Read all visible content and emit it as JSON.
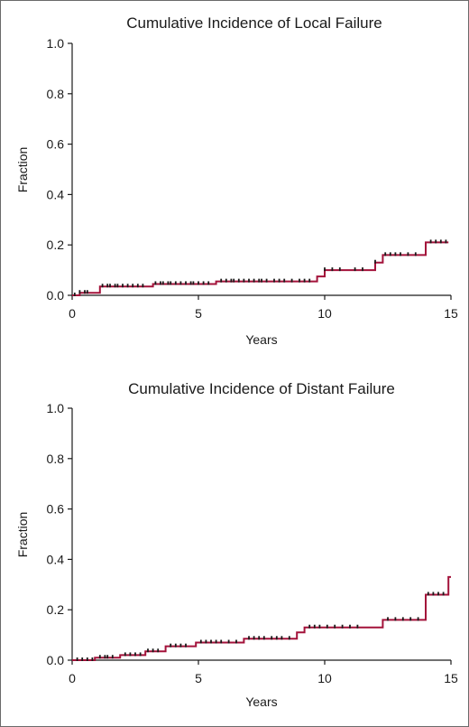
{
  "chart_data": [
    {
      "type": "line",
      "step": true,
      "title": "Cumulative Incidence of Local Failure",
      "xlabel": "Years",
      "ylabel": "Fraction",
      "xlim": [
        0,
        15
      ],
      "ylim": [
        0,
        1.0
      ],
      "xticks": [
        "0",
        "5",
        "10",
        "15"
      ],
      "yticks": [
        "0.0",
        "0.2",
        "0.4",
        "0.6",
        "0.8",
        "1.0"
      ],
      "grid": false,
      "line_color": "#a3123a",
      "censor_color": "#1a1a1a",
      "series": [
        {
          "x": [
            0,
            0.3,
            1.1,
            3.2,
            5.7,
            9.7,
            10.0,
            12.0,
            12.3,
            14.0,
            14.9
          ],
          "y": [
            0,
            0.01,
            0.035,
            0.045,
            0.055,
            0.075,
            0.1,
            0.13,
            0.16,
            0.21,
            0.21
          ],
          "censor_x": [
            0.1,
            0.3,
            0.5,
            0.6,
            1.2,
            1.4,
            1.5,
            1.7,
            1.8,
            2.0,
            2.2,
            2.4,
            2.6,
            2.8,
            3.3,
            3.5,
            3.6,
            3.8,
            3.9,
            4.1,
            4.3,
            4.5,
            4.7,
            4.8,
            5.0,
            5.2,
            5.4,
            5.9,
            6.1,
            6.3,
            6.4,
            6.6,
            6.8,
            7.0,
            7.2,
            7.4,
            7.5,
            7.7,
            8.0,
            8.2,
            8.4,
            8.7,
            9.0,
            9.2,
            9.4,
            10.0,
            10.3,
            10.6,
            11.2,
            11.5,
            12.0,
            12.4,
            12.6,
            12.8,
            13.0,
            13.3,
            13.6,
            14.2,
            14.4,
            14.6,
            14.8
          ]
        }
      ]
    },
    {
      "type": "line",
      "step": true,
      "title": "Cumulative Incidence of Distant Failure",
      "xlabel": "Years",
      "ylabel": "Fraction",
      "xlim": [
        0,
        15
      ],
      "ylim": [
        0,
        1.0
      ],
      "xticks": [
        "0",
        "5",
        "10",
        "15"
      ],
      "yticks": [
        "0.0",
        "0.2",
        "0.4",
        "0.6",
        "0.8",
        "1.0"
      ],
      "grid": false,
      "line_color": "#a3123a",
      "censor_color": "#1a1a1a",
      "series": [
        {
          "x": [
            0,
            0.9,
            1.9,
            2.9,
            3.7,
            4.9,
            6.8,
            8.9,
            9.2,
            12.1,
            12.3,
            13.9,
            14.0,
            14.9,
            15.0
          ],
          "y": [
            0,
            0.01,
            0.02,
            0.035,
            0.055,
            0.07,
            0.085,
            0.11,
            0.13,
            0.13,
            0.16,
            0.16,
            0.26,
            0.33,
            0.33
          ],
          "censor_x": [
            0.2,
            0.4,
            0.6,
            0.8,
            1.1,
            1.3,
            1.4,
            1.6,
            2.1,
            2.3,
            2.5,
            2.7,
            3.0,
            3.2,
            3.4,
            3.9,
            4.1,
            4.3,
            4.5,
            5.1,
            5.3,
            5.5,
            5.7,
            5.9,
            6.2,
            6.5,
            7.0,
            7.2,
            7.4,
            7.6,
            7.9,
            8.1,
            8.3,
            8.6,
            9.4,
            9.6,
            9.8,
            10.1,
            10.4,
            10.7,
            11.0,
            11.3,
            12.5,
            12.8,
            13.1,
            13.4,
            13.7,
            14.1,
            14.3,
            14.5,
            14.7
          ]
        }
      ]
    }
  ]
}
